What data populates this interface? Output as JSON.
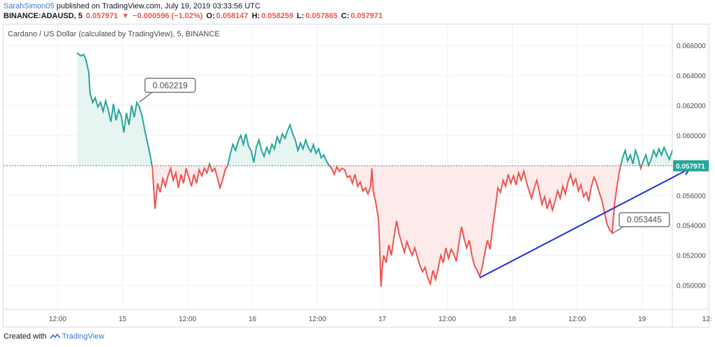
{
  "header": {
    "author": "SarahSimon05",
    "published_text": " published on TradingView.com, July 19, 2019 03:33:56 UTC",
    "symbol": "BINANCE:ADAUSD, 5",
    "last": "0.057971",
    "down_arrow": "▼",
    "change": "−0.000596 (−1.02%)",
    "ohlc": {
      "o_label": "O:",
      "o": "0.058147",
      "h_label": "H:",
      "h": "0.058259",
      "l_label": "L:",
      "l": "0.057865",
      "c_label": "C:",
      "c": "0.057971"
    }
  },
  "footer": {
    "created_with": "Created with",
    "brand": "TradingView"
  },
  "colors": {
    "up": "#26a69a",
    "down": "#ef5350",
    "up_fill": "#e6f4f2",
    "down_fill": "#fdeaea",
    "baseline": "#26a69a",
    "trendline": "#1c2fdc",
    "price_label_bg": "#26a69a",
    "grid": "#eef1f5",
    "axis_text": "#4a4a4a",
    "callout_border": "#787b86"
  },
  "chart_data": {
    "type": "line",
    "title": "Cardano / US Dollar (calculated by TradingView), 5, BINANCE",
    "ylim": [
      0.0484,
      0.0674
    ],
    "y_ticks": [
      "0.066000",
      "0.064000",
      "0.062000",
      "0.060000",
      "0.058000",
      "0.056000",
      "0.054000",
      "0.052000",
      "0.050000"
    ],
    "y_tick_values": [
      0.066,
      0.064,
      0.062,
      0.06,
      0.058,
      0.056,
      0.054,
      0.052,
      0.05
    ],
    "x_ticks": [
      "12:00",
      "15",
      "12:00",
      "16",
      "12:00",
      "17",
      "12:00",
      "18",
      "12:00",
      "19",
      "12:"
    ],
    "x_tick_days": [
      0,
      0.5,
      1,
      1.5,
      2,
      2.5,
      3,
      3.5,
      4,
      4.5,
      5
    ],
    "x_range_days": [
      -0.1,
      5.0
    ],
    "baseline": 0.057971,
    "last_price_label": "0.057971",
    "grid": true,
    "series": [
      {
        "values": [
          [
            -0.1,
            0.0655
          ],
          [
            -0.07,
            0.0653
          ],
          [
            -0.05,
            0.0654
          ],
          [
            -0.03,
            0.065
          ],
          [
            -0.01,
            0.0642
          ],
          [
            0.0,
            0.0628
          ],
          [
            0.02,
            0.0622
          ],
          [
            0.04,
            0.0625
          ],
          [
            0.06,
            0.0619
          ],
          [
            0.08,
            0.0622
          ],
          [
            0.1,
            0.0616
          ],
          [
            0.12,
            0.0623
          ],
          [
            0.14,
            0.0617
          ],
          [
            0.16,
            0.0609
          ],
          [
            0.18,
            0.0621
          ],
          [
            0.2,
            0.061
          ],
          [
            0.22,
            0.0617
          ],
          [
            0.24,
            0.0613
          ],
          [
            0.26,
            0.0602
          ],
          [
            0.28,
            0.0615
          ],
          [
            0.3,
            0.0607
          ],
          [
            0.32,
            0.062
          ],
          [
            0.34,
            0.0612
          ],
          [
            0.36,
            0.0622
          ],
          [
            0.38,
            0.0619
          ],
          [
            0.4,
            0.0613
          ],
          [
            0.42,
            0.0604
          ],
          [
            0.44,
            0.0596
          ],
          [
            0.46,
            0.0588
          ],
          [
            0.48,
            0.0578
          ],
          [
            0.49,
            0.0565
          ],
          [
            0.5,
            0.0551
          ],
          [
            0.51,
            0.056
          ],
          [
            0.52,
            0.0568
          ],
          [
            0.54,
            0.0562
          ],
          [
            0.56,
            0.0571
          ],
          [
            0.58,
            0.0566
          ],
          [
            0.6,
            0.0573
          ],
          [
            0.62,
            0.0578
          ],
          [
            0.64,
            0.057
          ],
          [
            0.66,
            0.0575
          ],
          [
            0.68,
            0.0565
          ],
          [
            0.7,
            0.0574
          ],
          [
            0.72,
            0.0568
          ],
          [
            0.74,
            0.0578
          ],
          [
            0.76,
            0.0572
          ],
          [
            0.78,
            0.0566
          ],
          [
            0.8,
            0.0574
          ],
          [
            0.82,
            0.0568
          ],
          [
            0.84,
            0.0577
          ],
          [
            0.86,
            0.0573
          ],
          [
            0.88,
            0.0578
          ],
          [
            0.9,
            0.0575
          ],
          [
            0.92,
            0.0581
          ],
          [
            0.94,
            0.0576
          ],
          [
            0.96,
            0.0578
          ],
          [
            0.98,
            0.0572
          ],
          [
            1.0,
            0.0565
          ],
          [
            1.02,
            0.057
          ],
          [
            1.04,
            0.0577
          ],
          [
            1.06,
            0.058
          ],
          [
            1.08,
            0.0588
          ],
          [
            1.1,
            0.0594
          ],
          [
            1.12,
            0.059
          ],
          [
            1.14,
            0.0596
          ],
          [
            1.16,
            0.06
          ],
          [
            1.18,
            0.0594
          ],
          [
            1.2,
            0.0601
          ],
          [
            1.22,
            0.0593
          ],
          [
            1.24,
            0.059
          ],
          [
            1.26,
            0.0582
          ],
          [
            1.28,
            0.0592
          ],
          [
            1.3,
            0.0597
          ],
          [
            1.32,
            0.059
          ],
          [
            1.34,
            0.0586
          ],
          [
            1.36,
            0.0592
          ],
          [
            1.38,
            0.0588
          ],
          [
            1.4,
            0.0594
          ],
          [
            1.42,
            0.0591
          ],
          [
            1.44,
            0.0599
          ],
          [
            1.46,
            0.0595
          ],
          [
            1.48,
            0.0601
          ],
          [
            1.5,
            0.0598
          ],
          [
            1.52,
            0.0603
          ],
          [
            1.54,
            0.0607
          ],
          [
            1.56,
            0.0601
          ],
          [
            1.58,
            0.0597
          ],
          [
            1.6,
            0.059
          ],
          [
            1.62,
            0.0595
          ],
          [
            1.64,
            0.0591
          ],
          [
            1.66,
            0.0597
          ],
          [
            1.68,
            0.0592
          ],
          [
            1.7,
            0.0589
          ],
          [
            1.72,
            0.0594
          ],
          [
            1.74,
            0.0588
          ],
          [
            1.76,
            0.0591
          ],
          [
            1.78,
            0.0585
          ],
          [
            1.8,
            0.0587
          ],
          [
            1.82,
            0.0583
          ],
          [
            1.84,
            0.058
          ],
          [
            1.86,
            0.0578
          ],
          [
            1.88,
            0.0574
          ],
          [
            1.9,
            0.0579
          ],
          [
            1.92,
            0.0576
          ],
          [
            1.94,
            0.0578
          ],
          [
            1.96,
            0.0577
          ],
          [
            1.98,
            0.0572
          ],
          [
            2.0,
            0.0573
          ],
          [
            2.02,
            0.0568
          ],
          [
            2.04,
            0.0574
          ],
          [
            2.06,
            0.0566
          ],
          [
            2.08,
            0.0569
          ],
          [
            2.1,
            0.0563
          ],
          [
            2.12,
            0.0565
          ],
          [
            2.14,
            0.0561
          ],
          [
            2.16,
            0.0566
          ],
          [
            2.17,
            0.0578
          ],
          [
            2.18,
            0.0563
          ],
          [
            2.2,
            0.0555
          ],
          [
            2.22,
            0.0545
          ],
          [
            2.23,
            0.0525
          ],
          [
            2.24,
            0.0499
          ],
          [
            2.25,
            0.0512
          ],
          [
            2.26,
            0.052
          ],
          [
            2.28,
            0.0515
          ],
          [
            2.3,
            0.0527
          ],
          [
            2.32,
            0.052
          ],
          [
            2.34,
            0.0532
          ],
          [
            2.36,
            0.0543
          ],
          [
            2.38,
            0.0534
          ],
          [
            2.4,
            0.0528
          ],
          [
            2.42,
            0.0522
          ],
          [
            2.44,
            0.0529
          ],
          [
            2.46,
            0.0524
          ],
          [
            2.48,
            0.052
          ],
          [
            2.5,
            0.0525
          ],
          [
            2.52,
            0.0519
          ],
          [
            2.54,
            0.0513
          ],
          [
            2.56,
            0.0509
          ],
          [
            2.58,
            0.0512
          ],
          [
            2.6,
            0.0505
          ],
          [
            2.62,
            0.0501
          ],
          [
            2.64,
            0.051
          ],
          [
            2.66,
            0.0504
          ],
          [
            2.68,
            0.0511
          ],
          [
            2.7,
            0.052
          ],
          [
            2.72,
            0.0515
          ],
          [
            2.74,
            0.0525
          ],
          [
            2.76,
            0.0518
          ],
          [
            2.78,
            0.0524
          ],
          [
            2.8,
            0.0521
          ],
          [
            2.82,
            0.0516
          ],
          [
            2.84,
            0.0528
          ],
          [
            2.86,
            0.0539
          ],
          [
            2.88,
            0.0531
          ],
          [
            2.9,
            0.0525
          ],
          [
            2.92,
            0.053
          ],
          [
            2.94,
            0.052
          ],
          [
            2.96,
            0.0513
          ],
          [
            2.98,
            0.051
          ],
          [
            3.0,
            0.0506
          ],
          [
            3.02,
            0.0512
          ],
          [
            3.04,
            0.0522
          ],
          [
            3.06,
            0.053
          ],
          [
            3.08,
            0.0524
          ],
          [
            3.1,
            0.0539
          ],
          [
            3.12,
            0.0551
          ],
          [
            3.14,
            0.0565
          ],
          [
            3.16,
            0.0562
          ],
          [
            3.18,
            0.057
          ],
          [
            3.2,
            0.0566
          ],
          [
            3.22,
            0.0574
          ],
          [
            3.24,
            0.0568
          ],
          [
            3.26,
            0.0573
          ],
          [
            3.28,
            0.0567
          ],
          [
            3.3,
            0.0575
          ],
          [
            3.32,
            0.057
          ],
          [
            3.34,
            0.0576
          ],
          [
            3.36,
            0.0569
          ],
          [
            3.38,
            0.0563
          ],
          [
            3.4,
            0.0558
          ],
          [
            3.42,
            0.0565
          ],
          [
            3.44,
            0.057
          ],
          [
            3.46,
            0.0562
          ],
          [
            3.48,
            0.0554
          ],
          [
            3.5,
            0.0559
          ],
          [
            3.52,
            0.0551
          ],
          [
            3.54,
            0.0557
          ],
          [
            3.56,
            0.055
          ],
          [
            3.58,
            0.0556
          ],
          [
            3.6,
            0.0563
          ],
          [
            3.62,
            0.0558
          ],
          [
            3.64,
            0.0566
          ],
          [
            3.66,
            0.0561
          ],
          [
            3.68,
            0.0569
          ],
          [
            3.7,
            0.0574
          ],
          [
            3.72,
            0.0567
          ],
          [
            3.74,
            0.0571
          ],
          [
            3.76,
            0.0563
          ],
          [
            3.78,
            0.0567
          ],
          [
            3.8,
            0.0559
          ],
          [
            3.82,
            0.0562
          ],
          [
            3.84,
            0.0556
          ],
          [
            3.86,
            0.0566
          ],
          [
            3.88,
            0.0572
          ],
          [
            3.9,
            0.0568
          ],
          [
            3.92,
            0.0562
          ],
          [
            3.94,
            0.0557
          ],
          [
            3.96,
            0.0549
          ],
          [
            3.98,
            0.0541
          ],
          [
            4.0,
            0.0537
          ],
          [
            4.02,
            0.0535
          ],
          [
            4.04,
            0.0555
          ],
          [
            4.06,
            0.0568
          ],
          [
            4.08,
            0.0578
          ],
          [
            4.1,
            0.0585
          ],
          [
            4.12,
            0.059
          ],
          [
            4.14,
            0.0583
          ],
          [
            4.16,
            0.0587
          ],
          [
            4.18,
            0.0581
          ],
          [
            4.2,
            0.059
          ],
          [
            4.22,
            0.0585
          ],
          [
            4.24,
            0.0578
          ],
          [
            4.26,
            0.0583
          ],
          [
            4.28,
            0.0587
          ],
          [
            4.3,
            0.058
          ],
          [
            4.32,
            0.0584
          ],
          [
            4.34,
            0.059
          ],
          [
            4.36,
            0.0586
          ],
          [
            4.38,
            0.0591
          ],
          [
            4.4,
            0.0587
          ],
          [
            4.42,
            0.0592
          ],
          [
            4.44,
            0.0588
          ],
          [
            4.46,
            0.0584
          ],
          [
            4.48,
            0.0589
          ],
          [
            4.5,
            0.0593
          ],
          [
            4.52,
            0.0588
          ],
          [
            4.54,
            0.0584
          ],
          [
            4.56,
            0.058
          ],
          [
            4.58,
            0.0582
          ],
          [
            4.6,
            0.0578
          ]
        ]
      }
    ],
    "annotations": [
      {
        "text": "0.062219",
        "x": 0.38,
        "y": 0.062219
      },
      {
        "text": "0.053445",
        "x": 4.02,
        "y": 0.053445
      }
    ],
    "trendline": {
      "from": [
        3.0,
        0.0505
      ],
      "to": [
        4.62,
        0.0578
      ]
    }
  }
}
